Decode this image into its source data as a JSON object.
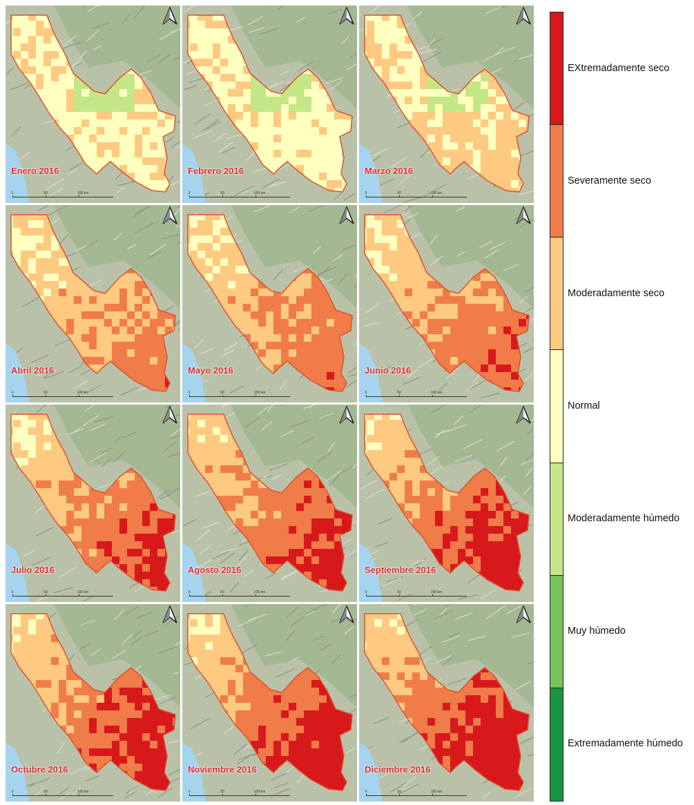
{
  "panels": [
    {
      "label": "Enero 2016",
      "drought_level": 1
    },
    {
      "label": "Febrero 2016",
      "drought_level": 1
    },
    {
      "label": "Marzo 2016",
      "drought_level": 1.5
    },
    {
      "label": "Abril 2016",
      "drought_level": 2.5
    },
    {
      "label": "Mayo 2016",
      "drought_level": 2.6
    },
    {
      "label": "Junio 2016",
      "drought_level": 2.8
    },
    {
      "label": "Julio 2016",
      "drought_level": 3.1
    },
    {
      "label": "Agosto 2016",
      "drought_level": 3.4
    },
    {
      "label": "Septiembre 2016",
      "drought_level": 3.6
    },
    {
      "label": "Octubre 2016",
      "drought_level": 3.5
    },
    {
      "label": "Noviembre 2016",
      "drought_level": 3.7
    },
    {
      "label": "Diciembre 2016",
      "drought_level": 3.8
    }
  ],
  "scale_bar": {
    "ticks": [
      "0",
      "50",
      "100 km"
    ]
  },
  "legend": [
    {
      "label": "EXtremadamente seco",
      "color": "#d7191c"
    },
    {
      "label": "Severamente seco",
      "color": "#f07c4a"
    },
    {
      "label": "Moderadamente seco",
      "color": "#fec981"
    },
    {
      "label": "Normal",
      "color": "#ffffc0"
    },
    {
      "label": "Moderadamente húmedo",
      "color": "#c4e687"
    },
    {
      "label": "Muy húmedo",
      "color": "#77c35c"
    },
    {
      "label": "Extremadamente húmedo",
      "color": "#1a9641"
    }
  ],
  "colors": {
    "basin_outline": "#e0502b",
    "terrain": "#b9c2a9",
    "water": "#a6d4ee",
    "label": "#e0272b"
  }
}
